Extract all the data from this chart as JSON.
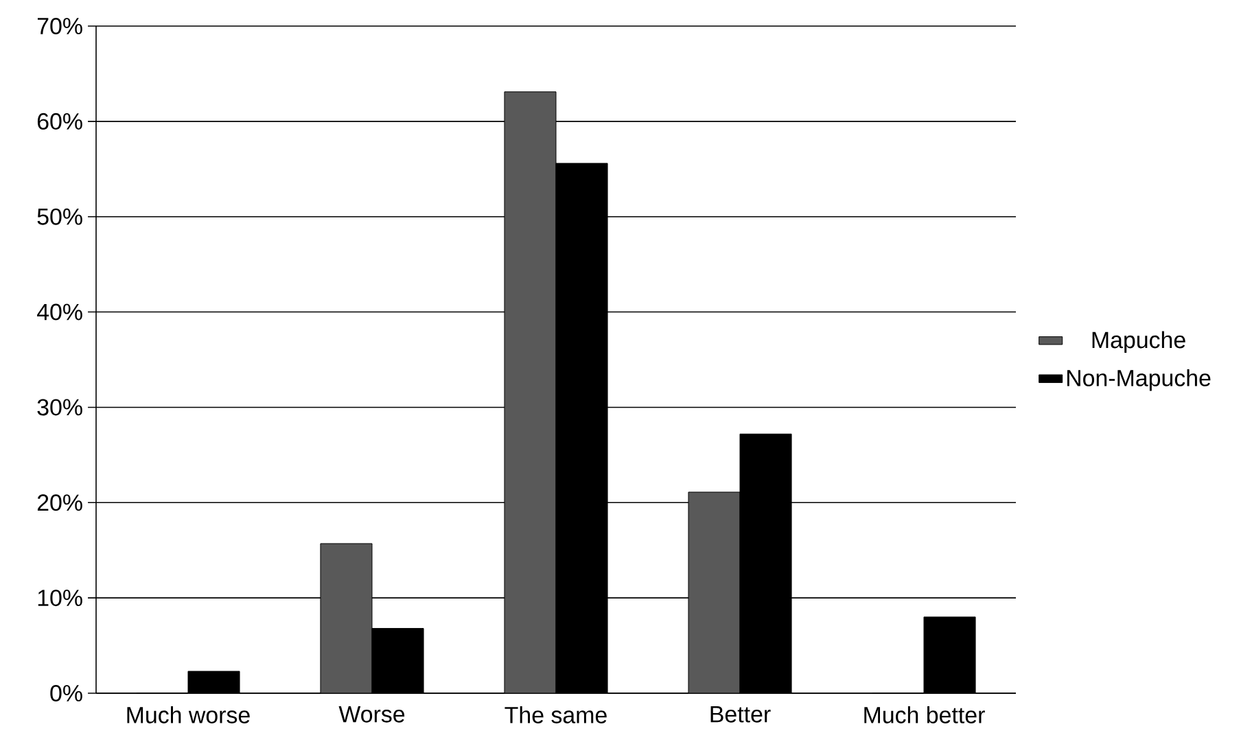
{
  "chart_data": {
    "type": "bar",
    "categories": [
      "Much worse",
      "Worse",
      "The same",
      "Better",
      "Much better"
    ],
    "series": [
      {
        "name": "Mapuche",
        "color": "#595959",
        "values": [
          0,
          15.7,
          63.1,
          21.1,
          0
        ]
      },
      {
        "name": "Non-Mapuche",
        "color": "#000000",
        "values": [
          2.3,
          6.8,
          55.6,
          27.2,
          8.0
        ]
      }
    ],
    "ylim": [
      0,
      70
    ],
    "yticks": [
      {
        "value": 0,
        "label": "0%"
      },
      {
        "value": 10,
        "label": "10%"
      },
      {
        "value": 20,
        "label": "20%"
      },
      {
        "value": 30,
        "label": "30%"
      },
      {
        "value": 40,
        "label": "40%"
      },
      {
        "value": 50,
        "label": "50%"
      },
      {
        "value": 60,
        "label": "60%"
      },
      {
        "value": 70,
        "label": "70%"
      }
    ],
    "grid": "y",
    "legend": "right"
  }
}
